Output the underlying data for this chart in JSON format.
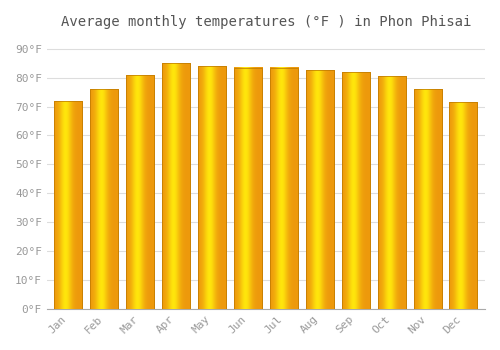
{
  "title": "Average monthly temperatures (°F ) in Phon Phisai",
  "months": [
    "Jan",
    "Feb",
    "Mar",
    "Apr",
    "May",
    "Jun",
    "Jul",
    "Aug",
    "Sep",
    "Oct",
    "Nov",
    "Dec"
  ],
  "values": [
    72,
    76,
    81,
    85,
    84,
    83.5,
    83.5,
    82.5,
    82,
    80.5,
    76,
    71.5
  ],
  "bar_color_left": "#E88000",
  "bar_color_center": "#FFB830",
  "bar_color_right": "#CC7000",
  "background_color": "#FFFFFF",
  "grid_color": "#DDDDDD",
  "yticks": [
    0,
    10,
    20,
    30,
    40,
    50,
    60,
    70,
    80,
    90
  ],
  "ytick_labels": [
    "0°F",
    "10°F",
    "20°F",
    "30°F",
    "40°F",
    "50°F",
    "60°F",
    "70°F",
    "80°F",
    "90°F"
  ],
  "ylim": [
    0,
    95
  ],
  "title_fontsize": 10,
  "tick_fontsize": 8,
  "font_color": "#999999"
}
